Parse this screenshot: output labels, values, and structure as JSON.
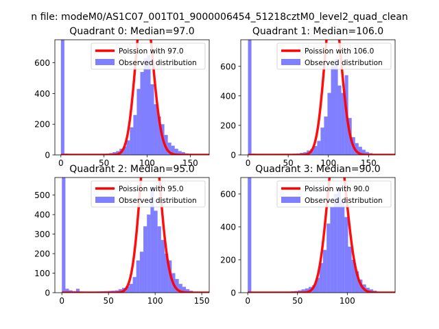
{
  "suptitle": "n file: modeM0/AS1C07_001T01_9000006454_51218cztM0_level2_quad_clean",
  "colors": {
    "fit": "#ff0000",
    "hist": "#0000ff",
    "axis": "#000000"
  },
  "chart_data": [
    {
      "type": "bar",
      "title": "Quadrant 0: Median=97.0",
      "legend": {
        "placement": "top-right",
        "entries": [
          "Poission with 97.0",
          "Observed distribution"
        ]
      },
      "xlim": [
        -7,
        172
      ],
      "ylim": [
        0,
        750
      ],
      "xticks": [
        0,
        50,
        100,
        150
      ],
      "yticks": [
        0,
        200,
        400,
        600
      ],
      "bin_width": 4,
      "hist": [
        [
          0,
          750
        ],
        [
          4,
          8
        ],
        [
          8,
          6
        ],
        [
          12,
          4
        ],
        [
          16,
          3
        ],
        [
          20,
          3
        ],
        [
          24,
          3
        ],
        [
          28,
          3
        ],
        [
          32,
          4
        ],
        [
          36,
          4
        ],
        [
          40,
          4
        ],
        [
          44,
          5
        ],
        [
          48,
          6
        ],
        [
          52,
          8
        ],
        [
          56,
          12
        ],
        [
          60,
          18
        ],
        [
          64,
          25
        ],
        [
          68,
          40
        ],
        [
          72,
          55
        ],
        [
          76,
          95
        ],
        [
          80,
          180
        ],
        [
          84,
          260
        ],
        [
          88,
          430
        ],
        [
          92,
          540
        ],
        [
          96,
          630
        ],
        [
          100,
          650
        ],
        [
          104,
          460
        ],
        [
          108,
          330
        ],
        [
          112,
          250
        ],
        [
          116,
          200
        ],
        [
          120,
          130
        ],
        [
          124,
          80
        ],
        [
          128,
          60
        ],
        [
          132,
          40
        ],
        [
          136,
          25
        ],
        [
          140,
          18
        ],
        [
          144,
          10
        ],
        [
          148,
          7
        ],
        [
          152,
          4
        ],
        [
          156,
          3
        ],
        [
          160,
          2
        ],
        [
          164,
          1
        ]
      ],
      "fit": {
        "label": "Poission with 97.0",
        "mean": 97.0,
        "scale": 4
      }
    },
    {
      "type": "bar",
      "title": "Quadrant 1: Median=106.0",
      "legend": {
        "placement": "top-right",
        "entries": [
          "Poission with 106.0",
          "Observed distribution"
        ]
      },
      "xlim": [
        -9,
        183
      ],
      "ylim": [
        0,
        780
      ],
      "xticks": [
        0,
        50,
        100,
        150
      ],
      "yticks": [
        0,
        200,
        400,
        600
      ],
      "bin_width": 4.3,
      "hist": [
        [
          0,
          780
        ],
        [
          4.3,
          8
        ],
        [
          8.6,
          6
        ],
        [
          12.9,
          4
        ],
        [
          17.2,
          3
        ],
        [
          21.5,
          3
        ],
        [
          25.8,
          3
        ],
        [
          30.1,
          3
        ],
        [
          34.4,
          4
        ],
        [
          38.7,
          4
        ],
        [
          43,
          4
        ],
        [
          47.3,
          5
        ],
        [
          51.6,
          6
        ],
        [
          55.9,
          8
        ],
        [
          60.2,
          10
        ],
        [
          64.5,
          14
        ],
        [
          68.8,
          18
        ],
        [
          73.1,
          30
        ],
        [
          77.4,
          40
        ],
        [
          81.7,
          60
        ],
        [
          86,
          95
        ],
        [
          90.3,
          185
        ],
        [
          94.6,
          260
        ],
        [
          98.9,
          420
        ],
        [
          103.2,
          600
        ],
        [
          107.5,
          650
        ],
        [
          111.8,
          470
        ],
        [
          116.1,
          420
        ],
        [
          120.4,
          540
        ],
        [
          124.7,
          250
        ],
        [
          129,
          120
        ],
        [
          133.3,
          80
        ],
        [
          137.6,
          55
        ],
        [
          141.9,
          35
        ],
        [
          146.2,
          20
        ],
        [
          150.5,
          12
        ],
        [
          154.8,
          6
        ],
        [
          159.1,
          3
        ],
        [
          163.4,
          2
        ],
        [
          167.7,
          1
        ]
      ],
      "fit": {
        "label": "Poission with 106.0",
        "mean": 106.0,
        "scale": 4.3
      }
    },
    {
      "type": "bar",
      "title": "Quadrant 2: Median=95.0",
      "legend": {
        "placement": "top-right",
        "entries": [
          "Poission with 95.0",
          "Observed distribution"
        ]
      },
      "xlim": [
        -7.5,
        158
      ],
      "ylim": [
        0,
        590
      ],
      "xticks": [
        0,
        50,
        100,
        150
      ],
      "yticks": [
        0,
        100,
        200,
        300,
        400,
        500
      ],
      "bin_width": 3.8,
      "hist": [
        [
          0,
          590
        ],
        [
          3.8,
          20
        ],
        [
          7.6,
          12
        ],
        [
          11.4,
          8
        ],
        [
          15.2,
          20
        ],
        [
          19,
          6
        ],
        [
          22.8,
          5
        ],
        [
          26.6,
          5
        ],
        [
          30.4,
          5
        ],
        [
          34.2,
          5
        ],
        [
          38,
          6
        ],
        [
          41.8,
          7
        ],
        [
          45.6,
          8
        ],
        [
          49.4,
          9
        ],
        [
          53.2,
          10
        ],
        [
          57,
          12
        ],
        [
          60.8,
          18
        ],
        [
          64.6,
          25
        ],
        [
          68.4,
          32
        ],
        [
          72.2,
          45
        ],
        [
          76,
          80
        ],
        [
          79.8,
          165
        ],
        [
          83.6,
          210
        ],
        [
          87.4,
          340
        ],
        [
          91.2,
          400
        ],
        [
          95,
          545
        ],
        [
          98.8,
          420
        ],
        [
          102.6,
          340
        ],
        [
          106.4,
          270
        ],
        [
          110.2,
          200
        ],
        [
          114,
          165
        ],
        [
          117.8,
          100
        ],
        [
          121.6,
          70
        ],
        [
          125.4,
          45
        ],
        [
          129.2,
          30
        ],
        [
          133,
          18
        ],
        [
          136.8,
          10
        ],
        [
          140.6,
          5
        ],
        [
          144.4,
          3
        ],
        [
          148.2,
          2
        ]
      ],
      "fit": {
        "label": "Poission with 95.0",
        "mean": 95.0,
        "scale": 3.8
      }
    },
    {
      "type": "bar",
      "title": "Quadrant 3: Median=90.0",
      "legend": {
        "placement": "top-right",
        "entries": [
          "Poission with 90.0",
          "Observed distribution"
        ]
      },
      "xlim": [
        -7,
        148
      ],
      "ylim": [
        0,
        700
      ],
      "xticks": [
        0,
        50,
        100,
        150
      ],
      "yticks": [
        0,
        200,
        400,
        600
      ],
      "bin_width": 3.6,
      "hist": [
        [
          0,
          700
        ],
        [
          3.6,
          4
        ],
        [
          7.2,
          3
        ],
        [
          10.8,
          3
        ],
        [
          14.4,
          3
        ],
        [
          18,
          3
        ],
        [
          21.6,
          3
        ],
        [
          25.2,
          4
        ],
        [
          28.8,
          4
        ],
        [
          32.4,
          4
        ],
        [
          36,
          5
        ],
        [
          39.6,
          6
        ],
        [
          43.2,
          8
        ],
        [
          46.8,
          10
        ],
        [
          50.4,
          14
        ],
        [
          54,
          20
        ],
        [
          57.6,
          26
        ],
        [
          61.2,
          35
        ],
        [
          64.8,
          45
        ],
        [
          68.4,
          90
        ],
        [
          72,
          180
        ],
        [
          75.6,
          260
        ],
        [
          79.2,
          420
        ],
        [
          82.8,
          520
        ],
        [
          86.4,
          600
        ],
        [
          90,
          640
        ],
        [
          93.6,
          560
        ],
        [
          97.2,
          460
        ],
        [
          100.8,
          280
        ],
        [
          104.4,
          200
        ],
        [
          108,
          130
        ],
        [
          111.6,
          80
        ],
        [
          115.2,
          50
        ],
        [
          118.8,
          30
        ],
        [
          122.4,
          20
        ],
        [
          126,
          12
        ],
        [
          129.6,
          6
        ],
        [
          133.2,
          3
        ],
        [
          136.8,
          2
        ]
      ],
      "fit": {
        "label": "Poission with 90.0",
        "mean": 90.0,
        "scale": 3.6
      }
    }
  ]
}
